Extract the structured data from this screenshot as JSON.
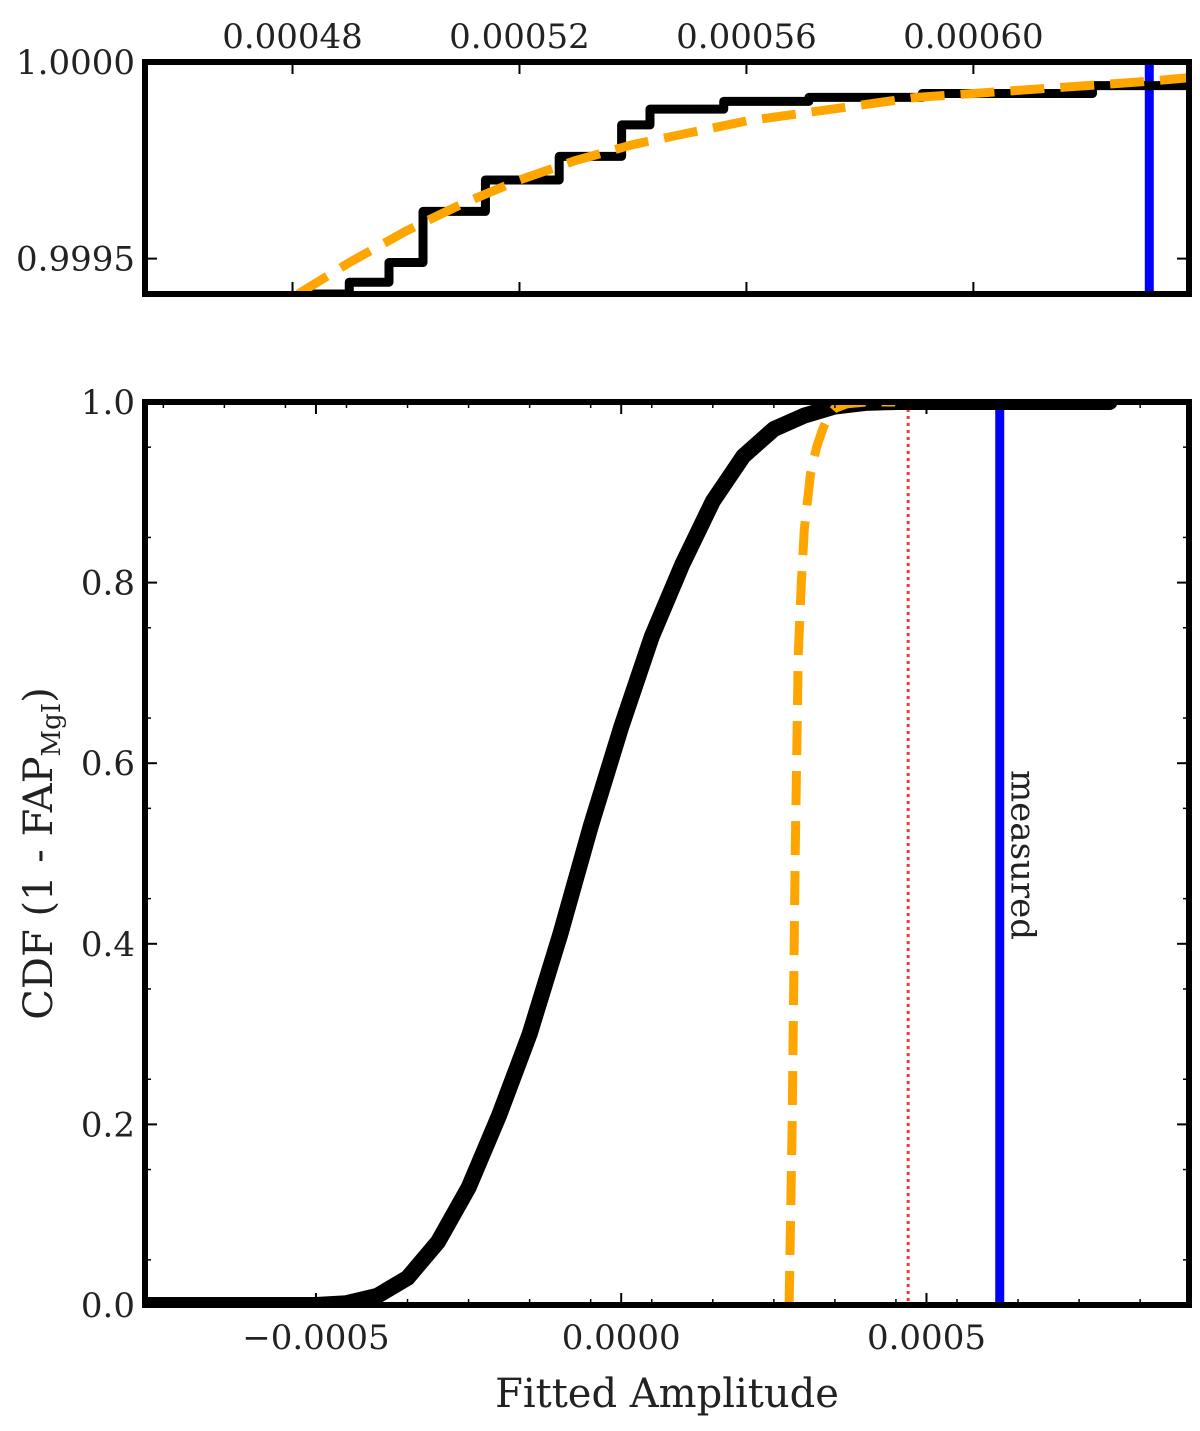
{
  "chart_data": [
    {
      "type": "line",
      "panel": "inset-zoom",
      "xlim": [
        0.000454,
        0.000638
      ],
      "ylim": [
        0.99941,
        1.0
      ],
      "x_ticks": [
        0.00048,
        0.00052,
        0.00056,
        0.0006
      ],
      "x_tick_labels": [
        "0.00048",
        "0.00052",
        "0.00056",
        "0.00060"
      ],
      "x_tick_position": "top",
      "y_ticks": [
        0.9995,
        1.0
      ],
      "y_tick_labels": [
        "0.9995",
        "1.0000"
      ],
      "xlabel": "",
      "ylabel": "",
      "series": [
        {
          "style": "black step",
          "color": "#000000",
          "x": [
            0.000481,
            0.00049,
            0.000497,
            0.000503,
            0.000508,
            0.000514,
            0.00052,
            0.000527,
            0.000533,
            0.000538,
            0.000543,
            0.00055,
            0.000556,
            0.000563,
            0.000571,
            0.000579,
            0.000591,
            0.0006,
            0.000621,
            0.000638
          ],
          "y": [
            0.99941,
            0.99944,
            0.99949,
            0.99962,
            0.99962,
            0.9997,
            0.9997,
            0.99976,
            0.99976,
            0.99984,
            0.99988,
            0.99988,
            0.9999,
            0.9999,
            0.99991,
            0.99991,
            0.99992,
            0.99992,
            0.99994,
            0.99994
          ]
        },
        {
          "style": "orange dashed",
          "color": "#FFA500",
          "x": [
            0.000481,
            0.00049,
            0.0005,
            0.00051,
            0.00052,
            0.00053,
            0.00054,
            0.00055,
            0.00056,
            0.00057,
            0.00058,
            0.00059,
            0.0006,
            0.00061,
            0.00062,
            0.00063,
            0.000638
          ],
          "y": [
            0.99941,
            0.99949,
            0.99957,
            0.99964,
            0.9997,
            0.99975,
            0.99979,
            0.99982,
            0.99985,
            0.99987,
            0.99989,
            0.99991,
            0.99992,
            0.99993,
            0.99994,
            0.99995,
            0.99996
          ]
        }
      ],
      "vlines": [
        {
          "x": 0.000631,
          "color": "#0000FF",
          "style": "solid"
        }
      ]
    },
    {
      "type": "line",
      "panel": "main",
      "xlim": [
        -0.00078,
        0.00093
      ],
      "ylim": [
        0.0,
        1.0
      ],
      "x_ticks": [
        -0.0005,
        0.0,
        0.0005
      ],
      "x_tick_labels": [
        "−0.0005",
        "0.0000",
        "0.0005"
      ],
      "y_ticks": [
        0.0,
        0.2,
        0.4,
        0.6,
        0.8,
        1.0
      ],
      "y_tick_labels": [
        "0.0",
        "0.2",
        "0.4",
        "0.6",
        "0.8",
        "1.0"
      ],
      "xlabel": "Fitted Amplitude",
      "ylabel": "CDF (1 - FAP",
      "ylabel_subscript": "MgI",
      "ylabel_close": ")",
      "series": [
        {
          "style": "black CDF",
          "color": "#000000",
          "x": [
            -0.00078,
            -0.0005,
            -0.00045,
            -0.0004,
            -0.00035,
            -0.0003,
            -0.00025,
            -0.0002,
            -0.00015,
            -0.0001,
            -5e-05,
            0.0,
            5e-05,
            0.0001,
            0.00015,
            0.0002,
            0.00025,
            0.0003,
            0.00035,
            0.0004,
            0.00045,
            0.0008
          ],
          "y": [
            0.0,
            0.0,
            0.002,
            0.01,
            0.03,
            0.07,
            0.13,
            0.21,
            0.3,
            0.41,
            0.53,
            0.64,
            0.74,
            0.82,
            0.89,
            0.94,
            0.97,
            0.985,
            0.995,
            0.999,
            1.0,
            1.0
          ]
        },
        {
          "style": "orange dashed",
          "color": "#FFA500",
          "x": [
            0.000275,
            0.00028,
            0.000285,
            0.00029,
            0.000295,
            0.0003,
            0.00031,
            0.00032,
            0.00033,
            0.00034,
            0.00035,
            0.00037,
            0.0004,
            0.00045
          ],
          "y": [
            0.0,
            0.2,
            0.5,
            0.72,
            0.8,
            0.86,
            0.92,
            0.95,
            0.97,
            0.985,
            0.993,
            0.998,
            1.0,
            1.0
          ]
        }
      ],
      "vlines": [
        {
          "x": 0.00047,
          "color": "#FF3333",
          "style": "dotted"
        },
        {
          "x": 0.00062,
          "color": "#0000FF",
          "style": "solid",
          "label": "measured"
        }
      ]
    }
  ]
}
